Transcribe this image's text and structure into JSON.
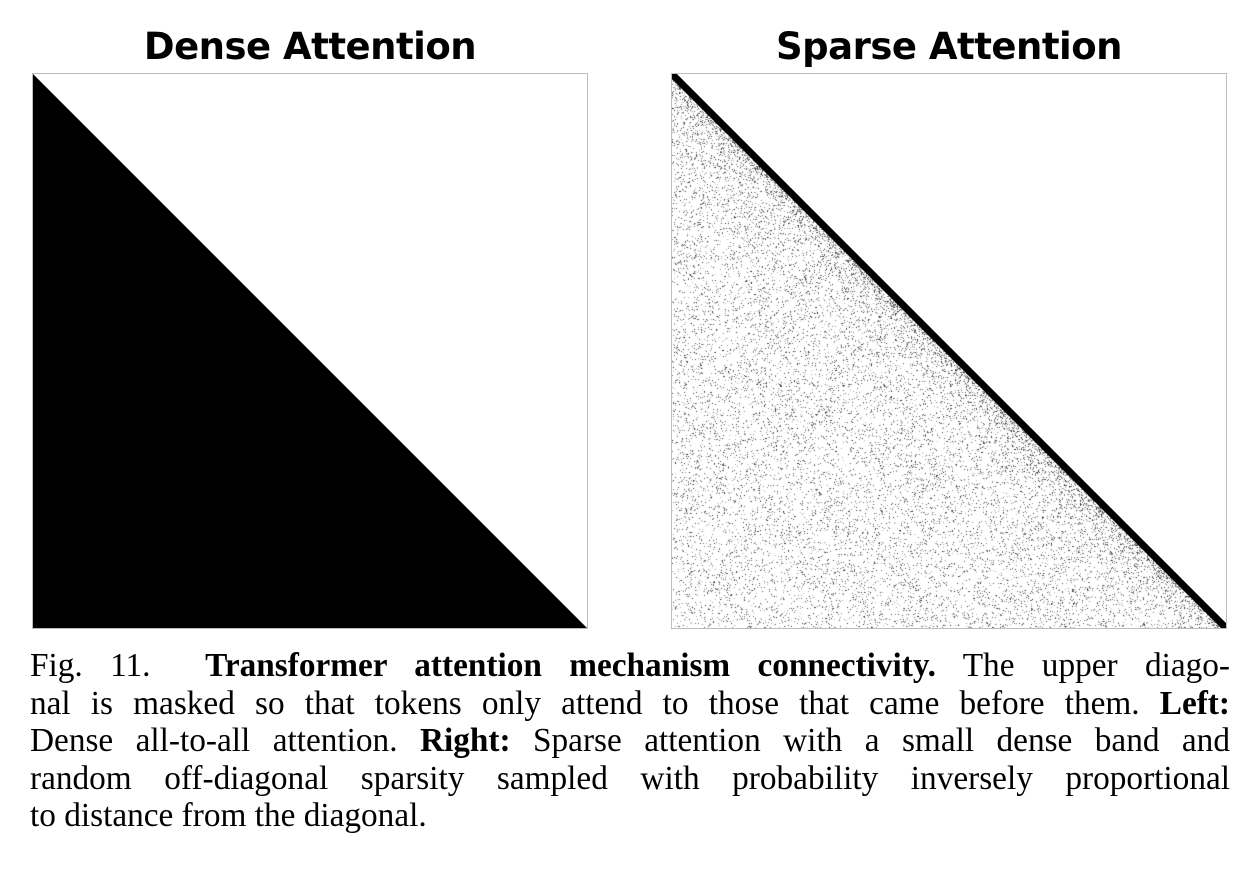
{
  "panels": {
    "left": {
      "title": "Dense Attention",
      "colors": {
        "fill": "#000000",
        "background": "#ffffff",
        "border": "#bdbdbd"
      }
    },
    "right": {
      "title": "Sparse Attention",
      "colors": {
        "fill": "#000000",
        "background": "#ffffff",
        "border": "#bdbdbd"
      }
    }
  },
  "caption": {
    "line1": {
      "label": "Fig. 11.",
      "bold": "Transformer attention mechanism connectivity.",
      "rest": " The upper diago-"
    },
    "line2": {
      "text": "nal is masked so that tokens only attend to those that came before them. ",
      "bold": "Left:"
    },
    "line3": {
      "text": "Dense all-to-all attention. ",
      "bold": "Right:",
      "rest": " Sparse attention with a small dense band and"
    },
    "line4": {
      "text": "random off-diagonal sparsity sampled with probability inversely proportional"
    },
    "line5": {
      "text": "to distance from the diagonal."
    }
  }
}
